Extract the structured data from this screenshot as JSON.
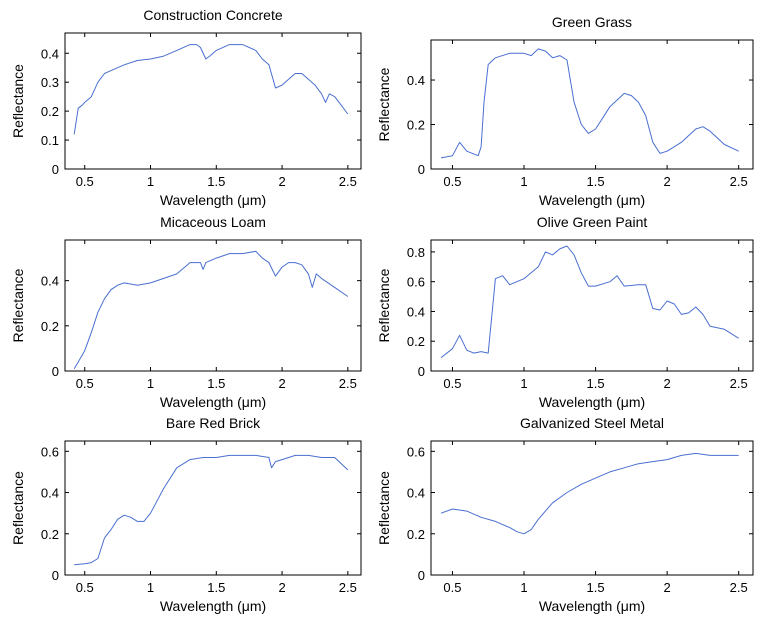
{
  "chart_data": [
    {
      "type": "line",
      "title": "Construction Concrete",
      "xlabel": "Wavelength (μm)",
      "ylabel": "Reflectance",
      "xlim": [
        0.35,
        2.6
      ],
      "ylim": [
        0,
        0.47
      ],
      "xticks": [
        0.5,
        1,
        1.5,
        2,
        2.5
      ],
      "xticklabels": [
        "0.5",
        "1",
        "1.5",
        "2",
        "2.5"
      ],
      "yticks": [
        0,
        0.1,
        0.2,
        0.3,
        0.4
      ],
      "yticklabels": [
        "0",
        "0.1",
        "0.2",
        "0.3",
        "0.4"
      ],
      "color": "#4a6fd0",
      "x": [
        0.42,
        0.45,
        0.48,
        0.5,
        0.55,
        0.6,
        0.65,
        0.7,
        0.8,
        0.9,
        1.0,
        1.1,
        1.2,
        1.3,
        1.35,
        1.38,
        1.42,
        1.45,
        1.5,
        1.6,
        1.7,
        1.8,
        1.85,
        1.9,
        1.95,
        2.0,
        2.05,
        2.1,
        2.15,
        2.2,
        2.25,
        2.3,
        2.33,
        2.36,
        2.4,
        2.45,
        2.5
      ],
      "y": [
        0.12,
        0.21,
        0.22,
        0.23,
        0.25,
        0.3,
        0.33,
        0.34,
        0.36,
        0.375,
        0.38,
        0.39,
        0.41,
        0.43,
        0.43,
        0.42,
        0.38,
        0.39,
        0.41,
        0.43,
        0.43,
        0.41,
        0.38,
        0.36,
        0.28,
        0.29,
        0.31,
        0.33,
        0.33,
        0.31,
        0.29,
        0.26,
        0.23,
        0.26,
        0.25,
        0.22,
        0.19
      ]
    },
    {
      "type": "line",
      "title": "Green Grass",
      "xlabel": "Wavelength (μm)",
      "ylabel": "Reflectance",
      "xlim": [
        0.35,
        2.6
      ],
      "ylim": [
        0,
        0.58
      ],
      "xticks": [
        0.5,
        1,
        1.5,
        2,
        2.5
      ],
      "xticklabels": [
        "0.5",
        "1",
        "1.5",
        "2",
        "2.5"
      ],
      "yticks": [
        0,
        0.2,
        0.4
      ],
      "yticklabels": [
        "0",
        "0.2",
        "0.4"
      ],
      "color": "#4a6fd0",
      "x": [
        0.42,
        0.5,
        0.55,
        0.6,
        0.68,
        0.7,
        0.72,
        0.75,
        0.8,
        0.9,
        1.0,
        1.05,
        1.1,
        1.15,
        1.2,
        1.25,
        1.3,
        1.35,
        1.4,
        1.45,
        1.5,
        1.6,
        1.7,
        1.75,
        1.8,
        1.85,
        1.9,
        1.95,
        2.0,
        2.1,
        2.2,
        2.25,
        2.3,
        2.4,
        2.5
      ],
      "y": [
        0.05,
        0.06,
        0.12,
        0.08,
        0.06,
        0.1,
        0.3,
        0.47,
        0.5,
        0.52,
        0.52,
        0.51,
        0.54,
        0.53,
        0.5,
        0.51,
        0.49,
        0.3,
        0.2,
        0.16,
        0.18,
        0.28,
        0.34,
        0.33,
        0.3,
        0.24,
        0.12,
        0.07,
        0.08,
        0.12,
        0.18,
        0.19,
        0.17,
        0.11,
        0.08
      ]
    },
    {
      "type": "line",
      "title": "Micaceous Loam",
      "xlabel": "Wavelength (μm)",
      "ylabel": "Reflectance",
      "xlim": [
        0.35,
        2.6
      ],
      "ylim": [
        0,
        0.58
      ],
      "xticks": [
        0.5,
        1,
        1.5,
        2,
        2.5
      ],
      "xticklabels": [
        "0.5",
        "1",
        "1.5",
        "2",
        "2.5"
      ],
      "yticks": [
        0,
        0.2,
        0.4
      ],
      "yticklabels": [
        "0",
        "0.2",
        "0.4"
      ],
      "color": "#4a6fd0",
      "x": [
        0.42,
        0.45,
        0.5,
        0.55,
        0.6,
        0.65,
        0.7,
        0.75,
        0.8,
        0.9,
        1.0,
        1.1,
        1.2,
        1.3,
        1.38,
        1.4,
        1.42,
        1.5,
        1.6,
        1.7,
        1.8,
        1.85,
        1.9,
        1.95,
        2.0,
        2.05,
        2.1,
        2.15,
        2.2,
        2.23,
        2.26,
        2.3,
        2.4,
        2.5
      ],
      "y": [
        0.01,
        0.04,
        0.09,
        0.17,
        0.26,
        0.32,
        0.36,
        0.38,
        0.39,
        0.38,
        0.39,
        0.41,
        0.43,
        0.48,
        0.48,
        0.45,
        0.48,
        0.5,
        0.52,
        0.52,
        0.53,
        0.5,
        0.48,
        0.42,
        0.46,
        0.48,
        0.48,
        0.47,
        0.43,
        0.37,
        0.43,
        0.41,
        0.37,
        0.33
      ]
    },
    {
      "type": "line",
      "title": "Olive Green Paint",
      "xlabel": "Wavelength (μm)",
      "ylabel": "Reflectance",
      "xlim": [
        0.35,
        2.6
      ],
      "ylim": [
        0,
        0.88
      ],
      "xticks": [
        0.5,
        1,
        1.5,
        2,
        2.5
      ],
      "xticklabels": [
        "0.5",
        "1",
        "1.5",
        "2",
        "2.5"
      ],
      "yticks": [
        0,
        0.2,
        0.4,
        0.6,
        0.8
      ],
      "yticklabels": [
        "0",
        "0.2",
        "0.4",
        "0.6",
        "0.8"
      ],
      "color": "#4a6fd0",
      "x": [
        0.42,
        0.5,
        0.55,
        0.6,
        0.65,
        0.7,
        0.75,
        0.8,
        0.85,
        0.9,
        1.0,
        1.1,
        1.15,
        1.2,
        1.25,
        1.3,
        1.35,
        1.4,
        1.45,
        1.5,
        1.6,
        1.65,
        1.7,
        1.8,
        1.85,
        1.9,
        1.95,
        2.0,
        2.05,
        2.1,
        2.15,
        2.2,
        2.25,
        2.3,
        2.4,
        2.5
      ],
      "y": [
        0.09,
        0.15,
        0.24,
        0.14,
        0.12,
        0.13,
        0.12,
        0.62,
        0.64,
        0.58,
        0.62,
        0.7,
        0.8,
        0.78,
        0.82,
        0.84,
        0.78,
        0.66,
        0.57,
        0.57,
        0.6,
        0.64,
        0.57,
        0.58,
        0.58,
        0.42,
        0.41,
        0.47,
        0.45,
        0.38,
        0.39,
        0.43,
        0.38,
        0.3,
        0.28,
        0.22
      ]
    },
    {
      "type": "line",
      "title": "Bare Red Brick",
      "xlabel": "Wavelength (μm)",
      "ylabel": "Reflectance",
      "xlim": [
        0.35,
        2.6
      ],
      "ylim": [
        0,
        0.65
      ],
      "xticks": [
        0.5,
        1,
        1.5,
        2,
        2.5
      ],
      "xticklabels": [
        "0.5",
        "1",
        "1.5",
        "2",
        "2.5"
      ],
      "yticks": [
        0,
        0.2,
        0.4,
        0.6
      ],
      "yticklabels": [
        "0",
        "0.2",
        "0.4",
        "0.6"
      ],
      "color": "#4a6fd0",
      "x": [
        0.42,
        0.5,
        0.55,
        0.6,
        0.65,
        0.7,
        0.75,
        0.8,
        0.85,
        0.9,
        0.95,
        1.0,
        1.05,
        1.1,
        1.2,
        1.3,
        1.4,
        1.5,
        1.6,
        1.8,
        1.9,
        1.92,
        1.95,
        2.0,
        2.1,
        2.2,
        2.3,
        2.4,
        2.5
      ],
      "y": [
        0.05,
        0.055,
        0.06,
        0.08,
        0.18,
        0.22,
        0.27,
        0.29,
        0.28,
        0.26,
        0.26,
        0.3,
        0.36,
        0.42,
        0.52,
        0.56,
        0.57,
        0.57,
        0.58,
        0.58,
        0.57,
        0.52,
        0.55,
        0.56,
        0.58,
        0.58,
        0.57,
        0.57,
        0.51
      ]
    },
    {
      "type": "line",
      "title": "Galvanized Steel Metal",
      "xlabel": "Wavelength (μm)",
      "ylabel": "Reflectance",
      "xlim": [
        0.35,
        2.6
      ],
      "ylim": [
        0,
        0.65
      ],
      "xticks": [
        0.5,
        1,
        1.5,
        2,
        2.5
      ],
      "xticklabels": [
        "0.5",
        "1",
        "1.5",
        "2",
        "2.5"
      ],
      "yticks": [
        0,
        0.2,
        0.4,
        0.6
      ],
      "yticklabels": [
        "0",
        "0.2",
        "0.4",
        "0.6"
      ],
      "color": "#4a6fd0",
      "x": [
        0.42,
        0.5,
        0.6,
        0.7,
        0.8,
        0.9,
        0.95,
        1.0,
        1.05,
        1.1,
        1.2,
        1.3,
        1.4,
        1.5,
        1.6,
        1.7,
        1.8,
        1.9,
        2.0,
        2.1,
        2.2,
        2.3,
        2.4,
        2.5
      ],
      "y": [
        0.3,
        0.32,
        0.31,
        0.28,
        0.26,
        0.23,
        0.21,
        0.2,
        0.22,
        0.27,
        0.35,
        0.4,
        0.44,
        0.47,
        0.5,
        0.52,
        0.54,
        0.55,
        0.56,
        0.58,
        0.59,
        0.58,
        0.58,
        0.58
      ]
    }
  ]
}
